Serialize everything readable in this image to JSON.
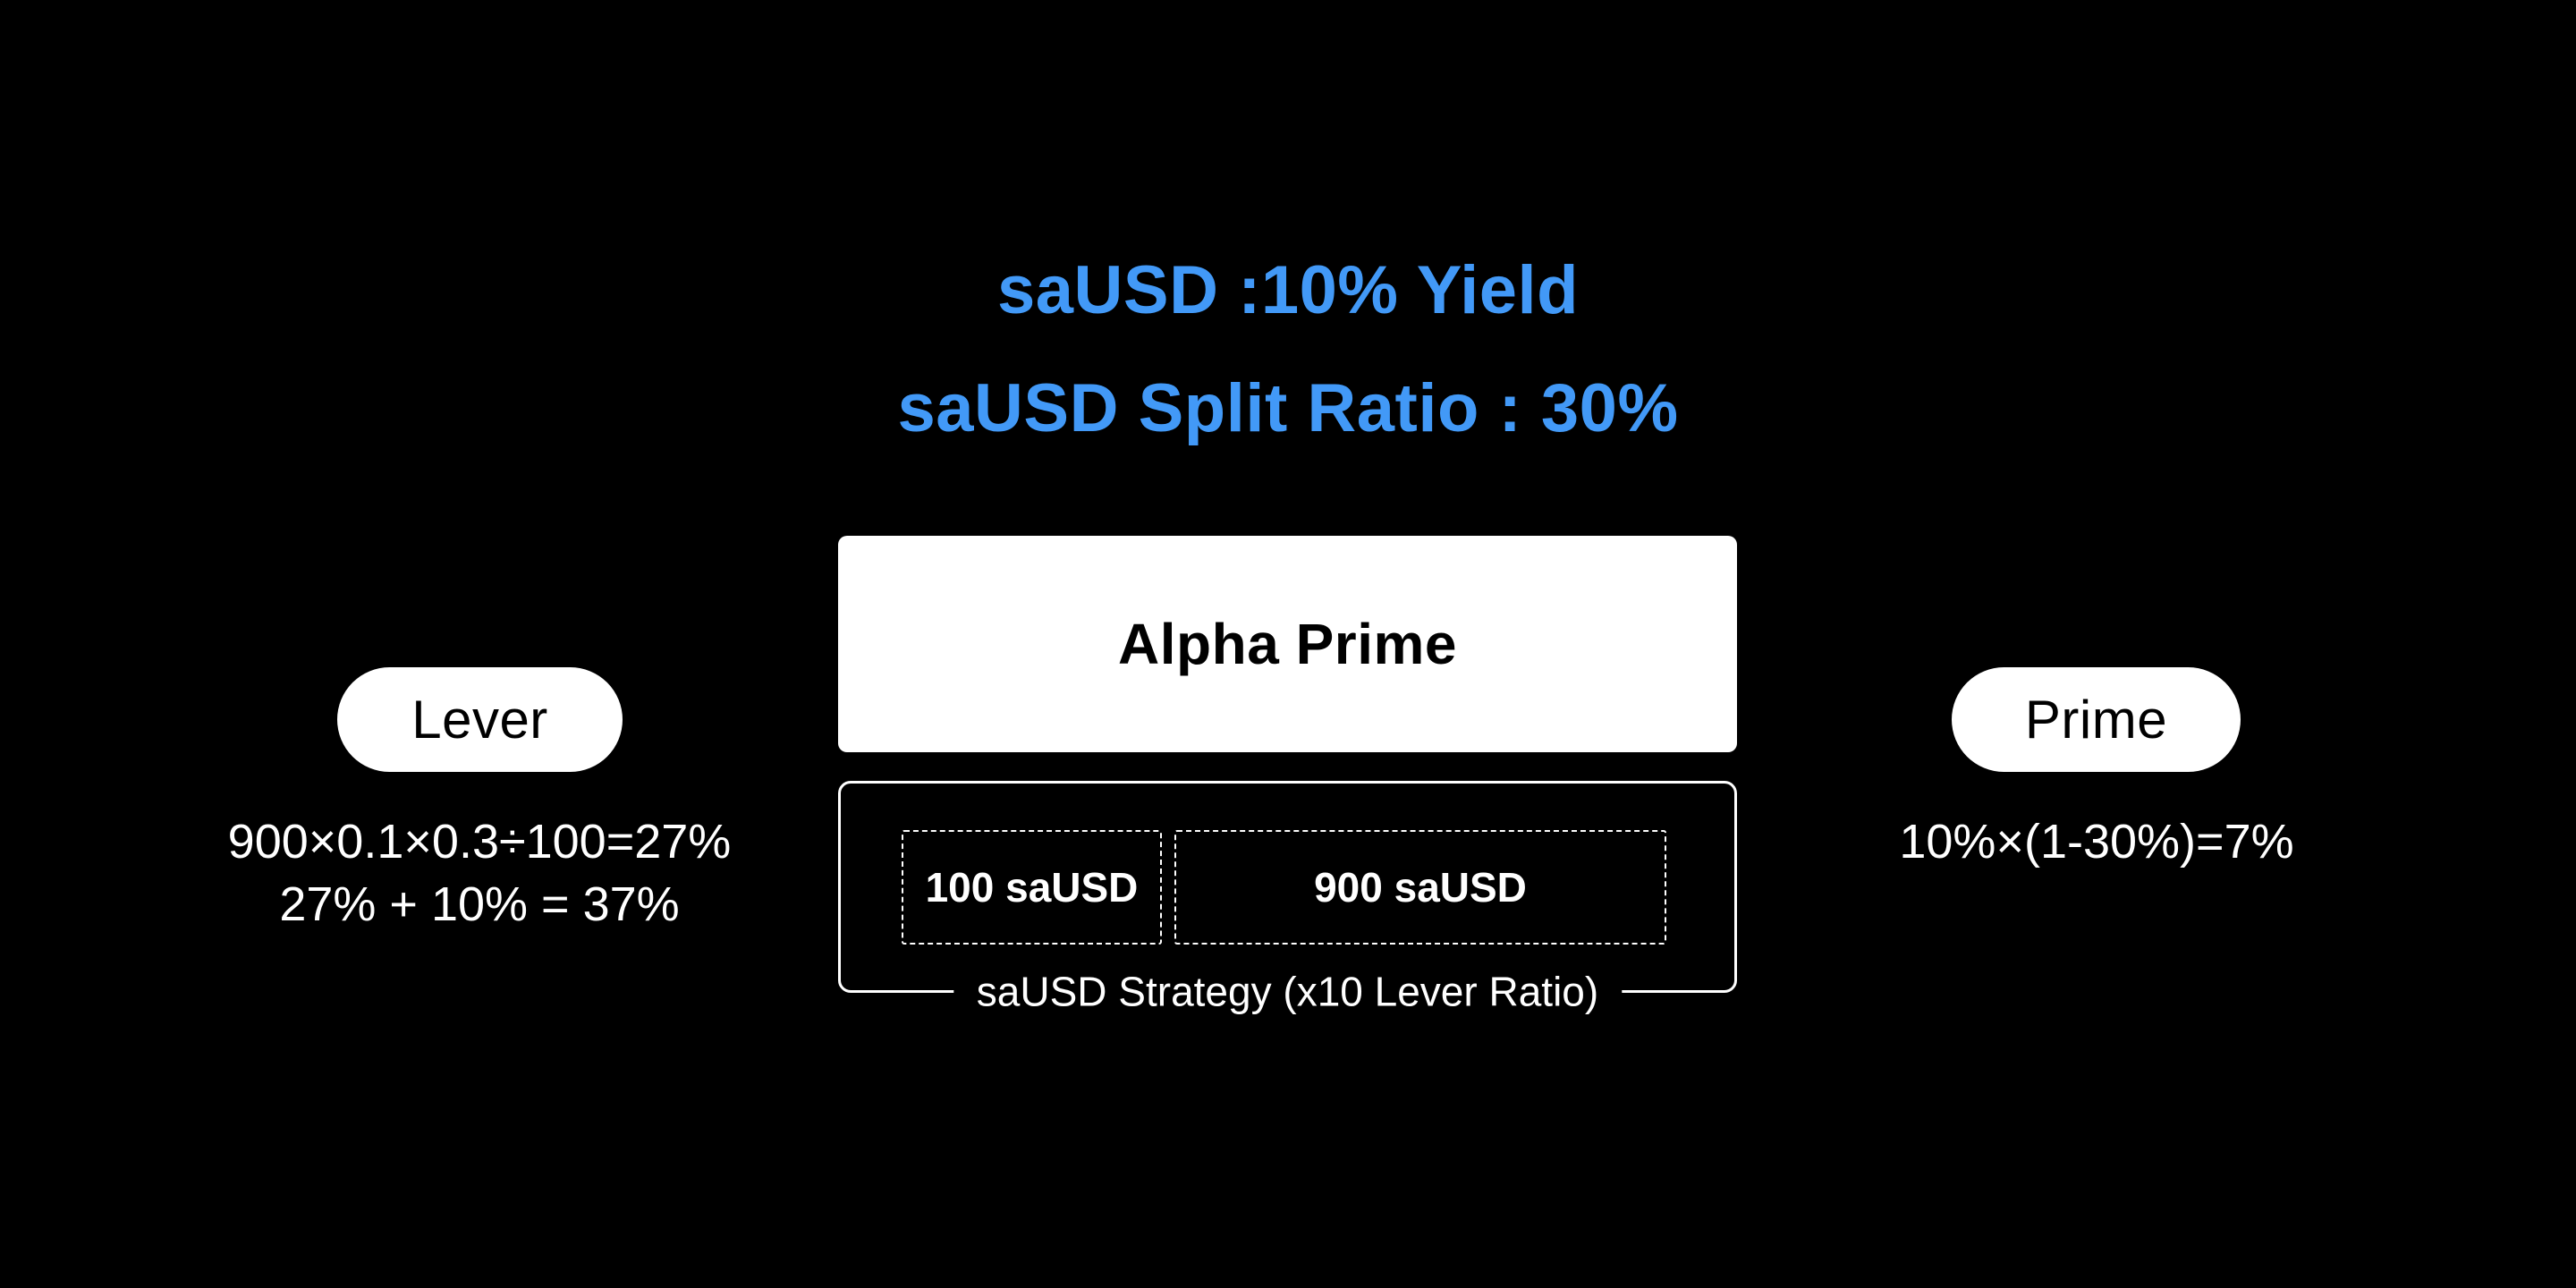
{
  "page": {
    "background": "#000000",
    "accent_blue": "#4299F7",
    "card_color": "#FFFFFF",
    "text_on_dark": "#FFFFFF",
    "text_on_light": "#000000"
  },
  "title": {
    "line1": "saUSD :10% Yield",
    "line2": "saUSD Split Ratio : 30%"
  },
  "alpha_prime": {
    "label": "Alpha Prime"
  },
  "strategy": {
    "label": "saUSD Strategy (x10 Lever Ratio)",
    "allocations": [
      {
        "label": "100 saUSD"
      },
      {
        "label": "900 saUSD"
      }
    ]
  },
  "lever": {
    "label": "Lever",
    "formula_line1": "900×0.1×0.3÷100=27%",
    "formula_line2": "27% + 10% = 37%"
  },
  "prime": {
    "label": "Prime",
    "formula": "10%×(1-30%)=7%"
  }
}
